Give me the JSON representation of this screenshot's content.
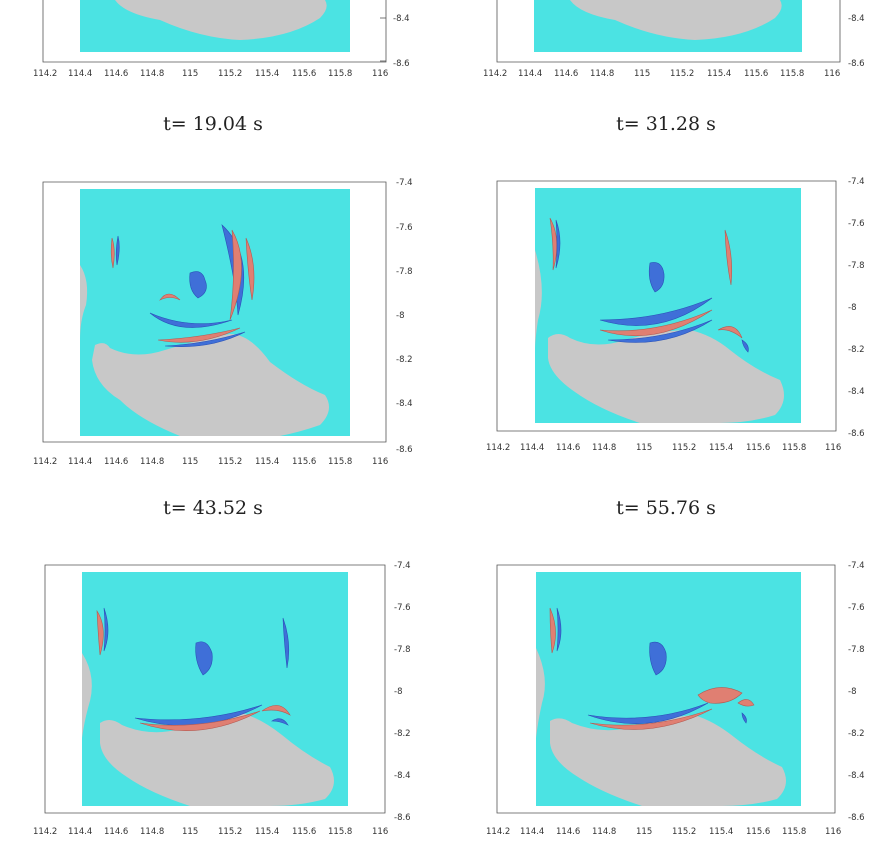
{
  "figure": {
    "panels": [
      {
        "id": "p1"
      },
      {
        "id": "p2"
      },
      {
        "id": "p3",
        "caption": "t= 19.04 s"
      },
      {
        "id": "p4",
        "caption": "t= 31.28 s"
      },
      {
        "id": "p5",
        "caption": "t= 43.52 s"
      },
      {
        "id": "p6",
        "caption": "t= 55.76 s"
      }
    ],
    "x_ticks": [
      "114.2",
      "114.4",
      "114.6",
      "114.8",
      "115",
      "115.2",
      "115.4",
      "115.6",
      "115.8",
      "116"
    ],
    "y_ticks": [
      "-7.4",
      "-7.6",
      "-7.8",
      "-8",
      "-8.2",
      "-8.4",
      "-8.6"
    ],
    "colors": {
      "sea": "#4be3e3",
      "land": "#c8c8c8",
      "trough": "#3f6fd8",
      "crest": "#e07f72"
    }
  }
}
